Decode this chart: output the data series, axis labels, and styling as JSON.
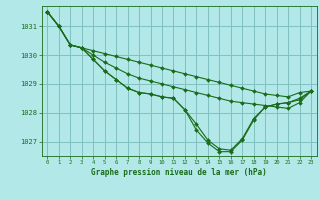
{
  "title": "Graphe pression niveau de la mer (hPa)",
  "bg_color": "#b2e8e8",
  "grid_color": "#80c0c0",
  "line_color": "#1a6b1a",
  "xlim": [
    -0.5,
    23.5
  ],
  "ylim": [
    1026.5,
    1031.7
  ],
  "yticks": [
    1027,
    1028,
    1029,
    1030,
    1031
  ],
  "xtick_labels": [
    "0",
    "1",
    "2",
    "3",
    "4",
    "5",
    "6",
    "7",
    "8",
    "9",
    "10",
    "11",
    "12",
    "13",
    "14",
    "15",
    "16",
    "17",
    "18",
    "19",
    "20",
    "21",
    "22",
    "23"
  ],
  "series": [
    [
      1031.5,
      1031.0,
      1030.35,
      1030.25,
      1030.15,
      1030.05,
      1029.95,
      1029.85,
      1029.75,
      1029.65,
      1029.55,
      1029.45,
      1029.35,
      1029.25,
      1029.15,
      1029.05,
      1028.95,
      1028.85,
      1028.75,
      1028.65,
      1028.6,
      1028.55,
      1028.7,
      1028.75
    ],
    [
      1031.5,
      1031.0,
      1030.35,
      1030.25,
      1030.0,
      1029.75,
      1029.55,
      1029.35,
      1029.2,
      1029.1,
      1029.0,
      1028.9,
      1028.8,
      1028.7,
      1028.6,
      1028.5,
      1028.4,
      1028.35,
      1028.3,
      1028.25,
      1028.2,
      1028.15,
      1028.35,
      1028.75
    ],
    [
      1031.5,
      1031.0,
      1030.35,
      1030.25,
      1029.85,
      1029.45,
      1029.15,
      1028.85,
      1028.7,
      1028.65,
      1028.55,
      1028.5,
      1028.1,
      1027.6,
      1027.05,
      1026.75,
      1026.7,
      1027.1,
      1027.8,
      1028.2,
      1028.3,
      1028.35,
      1028.5,
      1028.75
    ],
    [
      1031.5,
      1031.0,
      1030.35,
      1030.25,
      1029.85,
      1029.45,
      1029.15,
      1028.85,
      1028.7,
      1028.65,
      1028.55,
      1028.5,
      1028.1,
      1027.4,
      1026.95,
      1026.65,
      1026.65,
      1027.05,
      1027.75,
      1028.2,
      1028.3,
      1028.35,
      1028.45,
      1028.75
    ]
  ]
}
